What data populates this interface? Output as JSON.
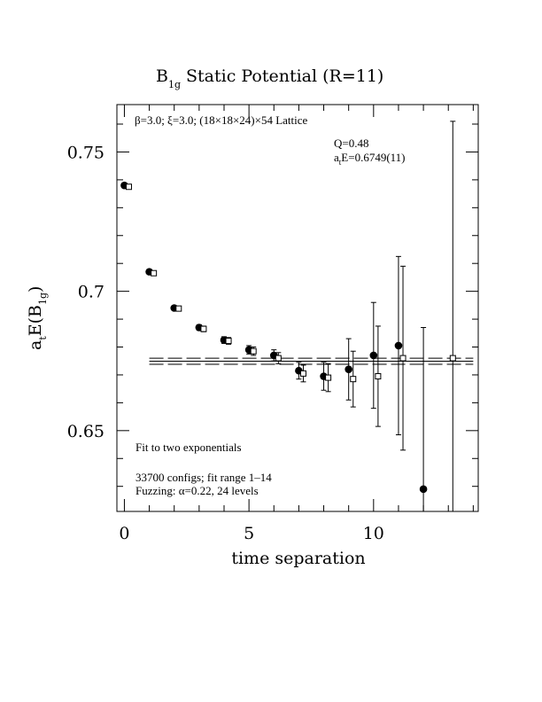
{
  "chart_data": {
    "type": "scatter",
    "title_main": "B",
    "title_sub": "1g",
    "title_rest": "Static Potential (R=11)",
    "xlabel": "time separation",
    "ylabel_main": "a",
    "ylabel_sub1": "t",
    "ylabel_mid": "E(B",
    "ylabel_sub2": "1g",
    "ylabel_end": ")",
    "xlim": [
      -0.3,
      14.2
    ],
    "ylim": [
      0.621,
      0.767
    ],
    "x_ticks": [
      0,
      5,
      10
    ],
    "x_tick_labels": [
      "0",
      "5",
      "10"
    ],
    "y_ticks": [
      0.65,
      0.7,
      0.75
    ],
    "y_tick_labels": [
      "0.65",
      "0.7",
      "0.75"
    ],
    "lattice_label": "β=3.0; ξ=3.0; (18×18×24)×54 Lattice",
    "q_label": "Q=0.48",
    "fit_energy_main": "a",
    "fit_energy_sub": "t",
    "fit_energy_rest": "E=0.6749(11)",
    "fit_note": "Fit to two exponentials",
    "configs_note": "33700 configs; fit range 1–14",
    "fuzzing_note": "Fuzzing: α=0.22, 24 levels",
    "fit": {
      "value": 0.6749,
      "error": 0.0011,
      "x_range": [
        1,
        14
      ]
    },
    "series": [
      {
        "marker": "filled-circle",
        "x": [
          0,
          1,
          2,
          3,
          4,
          5,
          6,
          7,
          8,
          9,
          10,
          11,
          12
        ],
        "y": [
          0.738,
          0.707,
          0.694,
          0.687,
          0.6825,
          0.679,
          0.677,
          0.6715,
          0.6695,
          0.672,
          0.677,
          0.6805,
          0.629
        ],
        "err": [
          0.0005,
          0.0006,
          0.0008,
          0.001,
          0.0012,
          0.0015,
          0.002,
          0.003,
          0.005,
          0.011,
          0.019,
          0.032,
          0.058
        ]
      },
      {
        "marker": "open-square",
        "x": [
          0,
          1,
          2,
          3,
          4,
          5,
          6,
          7,
          8,
          9,
          10,
          11,
          13
        ],
        "y": [
          0.7375,
          0.7065,
          0.6938,
          0.6865,
          0.6822,
          0.6785,
          0.676,
          0.6705,
          0.669,
          0.6685,
          0.6695,
          0.676,
          0.676
        ],
        "err": [
          0.0005,
          0.0006,
          0.0008,
          0.001,
          0.0012,
          0.0015,
          0.002,
          0.003,
          0.005,
          0.01,
          0.018,
          0.033,
          0.085
        ]
      }
    ]
  }
}
